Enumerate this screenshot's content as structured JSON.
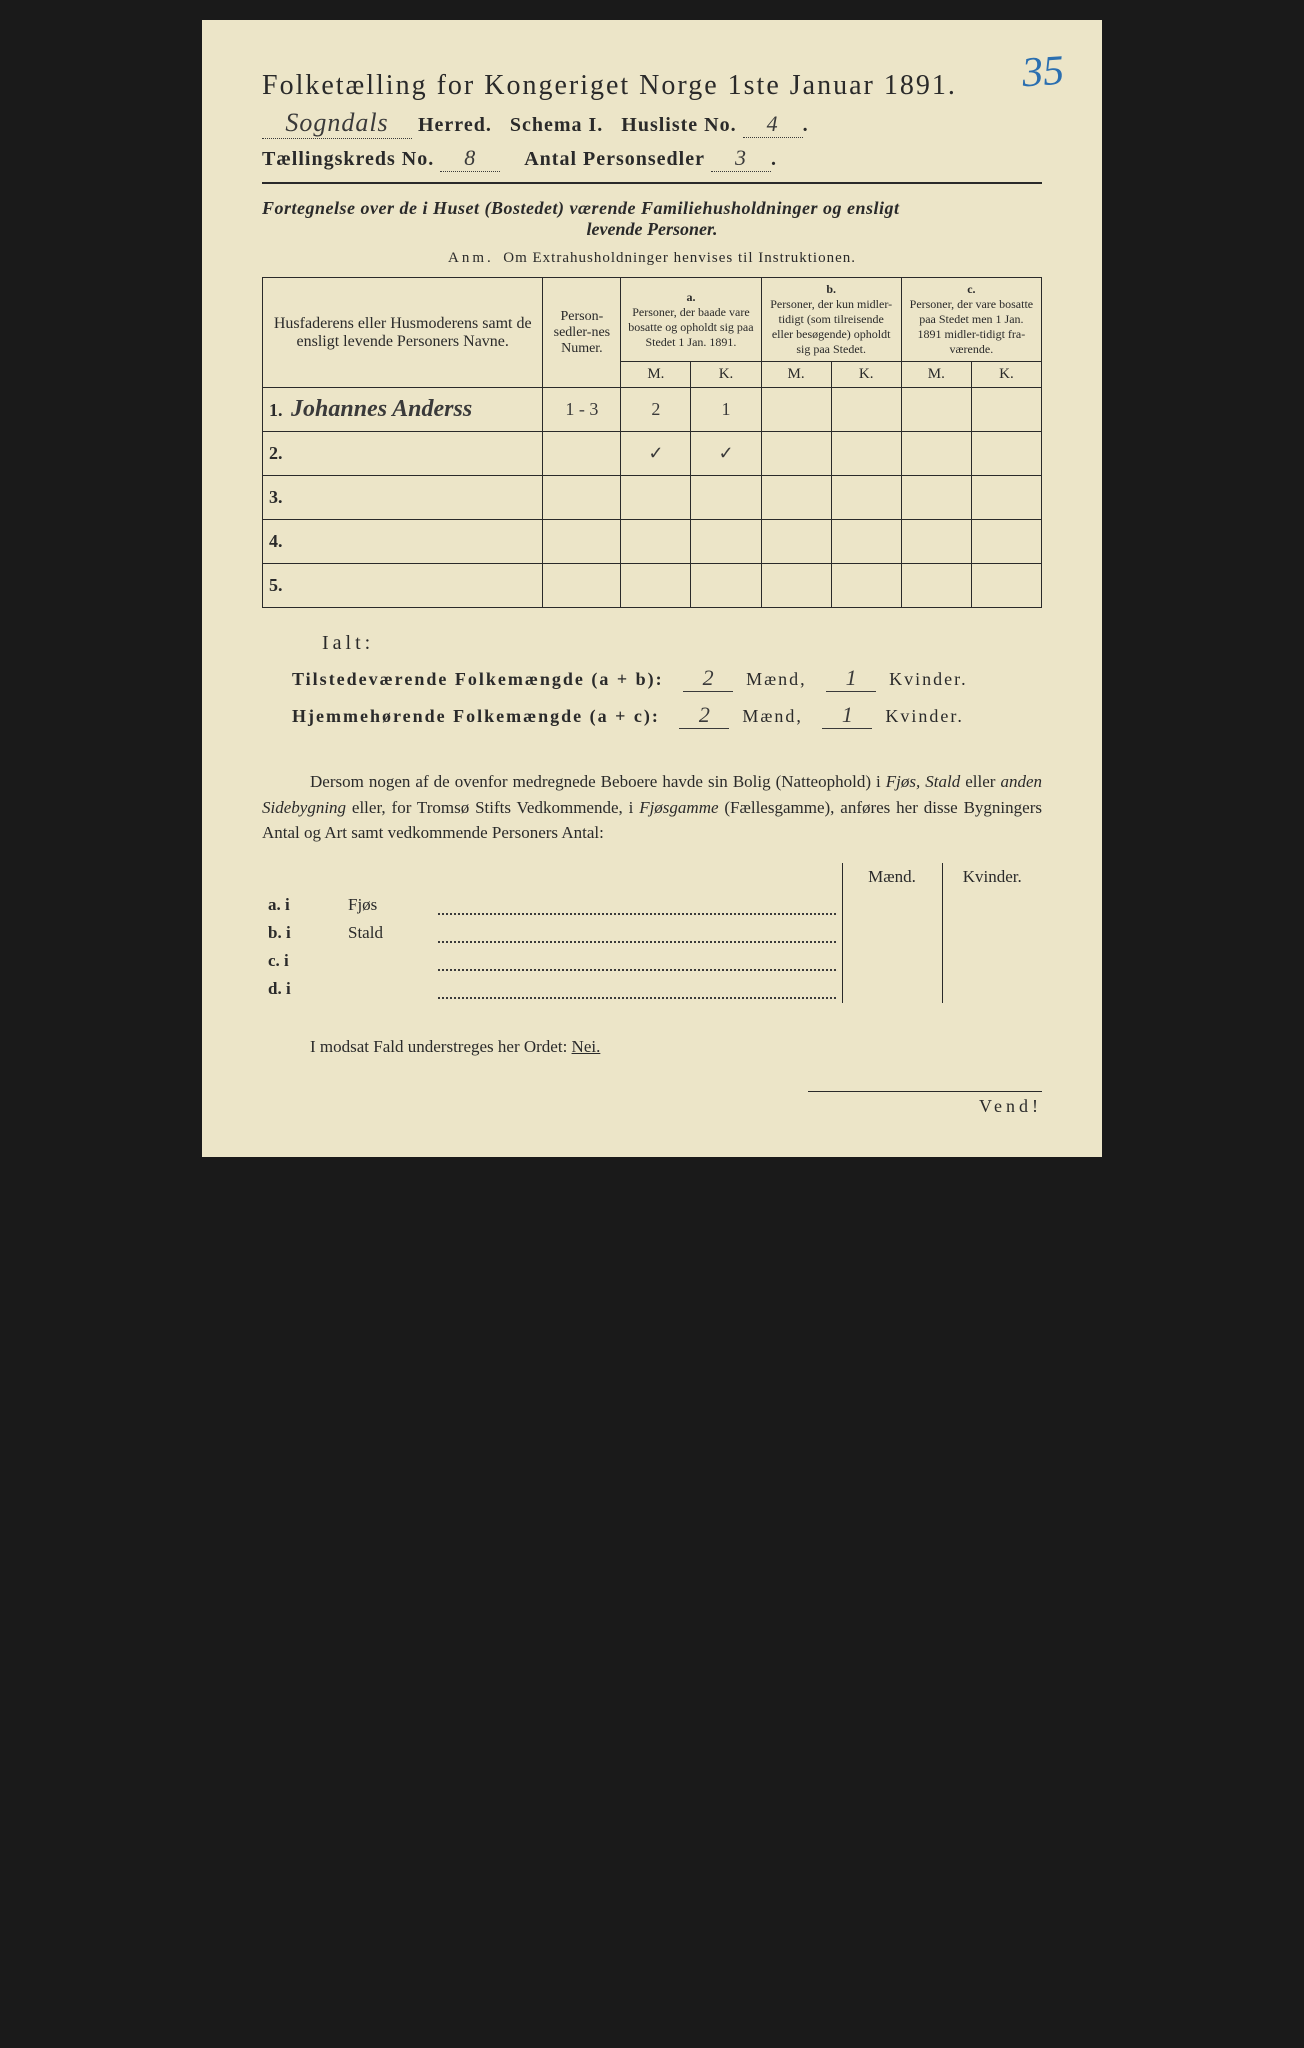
{
  "corner_number": "35",
  "title": "Folketælling for Kongeriget Norge 1ste Januar 1891.",
  "header": {
    "herred_value": "Sogndals",
    "herred_label": "Herred.",
    "schema_label": "Schema I.",
    "husliste_label": "Husliste No.",
    "husliste_value": "4",
    "kreds_label": "Tællingskreds No.",
    "kreds_value": "8",
    "antal_label": "Antal Personsedler",
    "antal_value": "3"
  },
  "fortegnelse": "Fortegnelse over de i Huset (Bostedet) værende Familiehusholdninger og ensligt",
  "fortegnelse_sub": "levende Personer.",
  "anm": "Anm.  Om Extrahusholdninger henvises til Instruktionen.",
  "table": {
    "col_name": "Husfaderens eller Husmoderens samt de ensligt levende Personers Navne.",
    "col_num": "Person-sedler-nes Numer.",
    "col_a_label": "a.",
    "col_a": "Personer, der baade vare bosatte og opholdt sig paa Stedet 1 Jan. 1891.",
    "col_b_label": "b.",
    "col_b": "Personer, der kun midler-tidigt (som tilreisende eller besøgende) opholdt sig paa Stedet.",
    "col_c_label": "c.",
    "col_c": "Personer, der vare bosatte paa Stedet men 1 Jan. 1891 midler-tidigt fra-værende.",
    "m": "M.",
    "k": "K.",
    "rows": [
      {
        "n": "1.",
        "name": "Johannes Anderss",
        "num": "1 - 3",
        "am": "2",
        "ak": "1",
        "bm": "",
        "bk": "",
        "cm": "",
        "ck": ""
      },
      {
        "n": "2.",
        "name": "",
        "num": "",
        "am": "✓",
        "ak": "✓",
        "bm": "",
        "bk": "",
        "cm": "",
        "ck": ""
      },
      {
        "n": "3.",
        "name": "",
        "num": "",
        "am": "",
        "ak": "",
        "bm": "",
        "bk": "",
        "cm": "",
        "ck": ""
      },
      {
        "n": "4.",
        "name": "",
        "num": "",
        "am": "",
        "ak": "",
        "bm": "",
        "bk": "",
        "cm": "",
        "ck": ""
      },
      {
        "n": "5.",
        "name": "",
        "num": "",
        "am": "",
        "ak": "",
        "bm": "",
        "bk": "",
        "cm": "",
        "ck": ""
      }
    ]
  },
  "ialt": "Ialt:",
  "sum_tilst_label": "Tilstedeværende Folkemængde (a + b):",
  "sum_hjem_label": "Hjemmehørende Folkemængde (a + c):",
  "sum_m": "Mænd,",
  "sum_k": "Kvinder.",
  "sum_tilst_m": "2",
  "sum_tilst_k": "1",
  "sum_hjem_m": "2",
  "sum_hjem_k": "1",
  "para": "Dersom nogen af de ovenfor medregnede Beboere havde sin Bolig (Natteophold) i Fjøs, Stald eller anden Sidebygning eller, for Tromsø Stifts Vedkommende, i Fjøsgamme (Fællesgamme), anføres her disse Bygningers Antal og Art samt vedkommende Personers Antal:",
  "fjos": {
    "head_m": "Mænd.",
    "head_k": "Kvinder.",
    "rows": [
      {
        "l": "a.  i",
        "w": "Fjøs"
      },
      {
        "l": "b.  i",
        "w": "Stald"
      },
      {
        "l": "c.  i",
        "w": ""
      },
      {
        "l": "d.  i",
        "w": ""
      }
    ]
  },
  "modsat": "I modsat Fald understreges her Ordet:",
  "nei": "Nei.",
  "vend": "Vend!"
}
